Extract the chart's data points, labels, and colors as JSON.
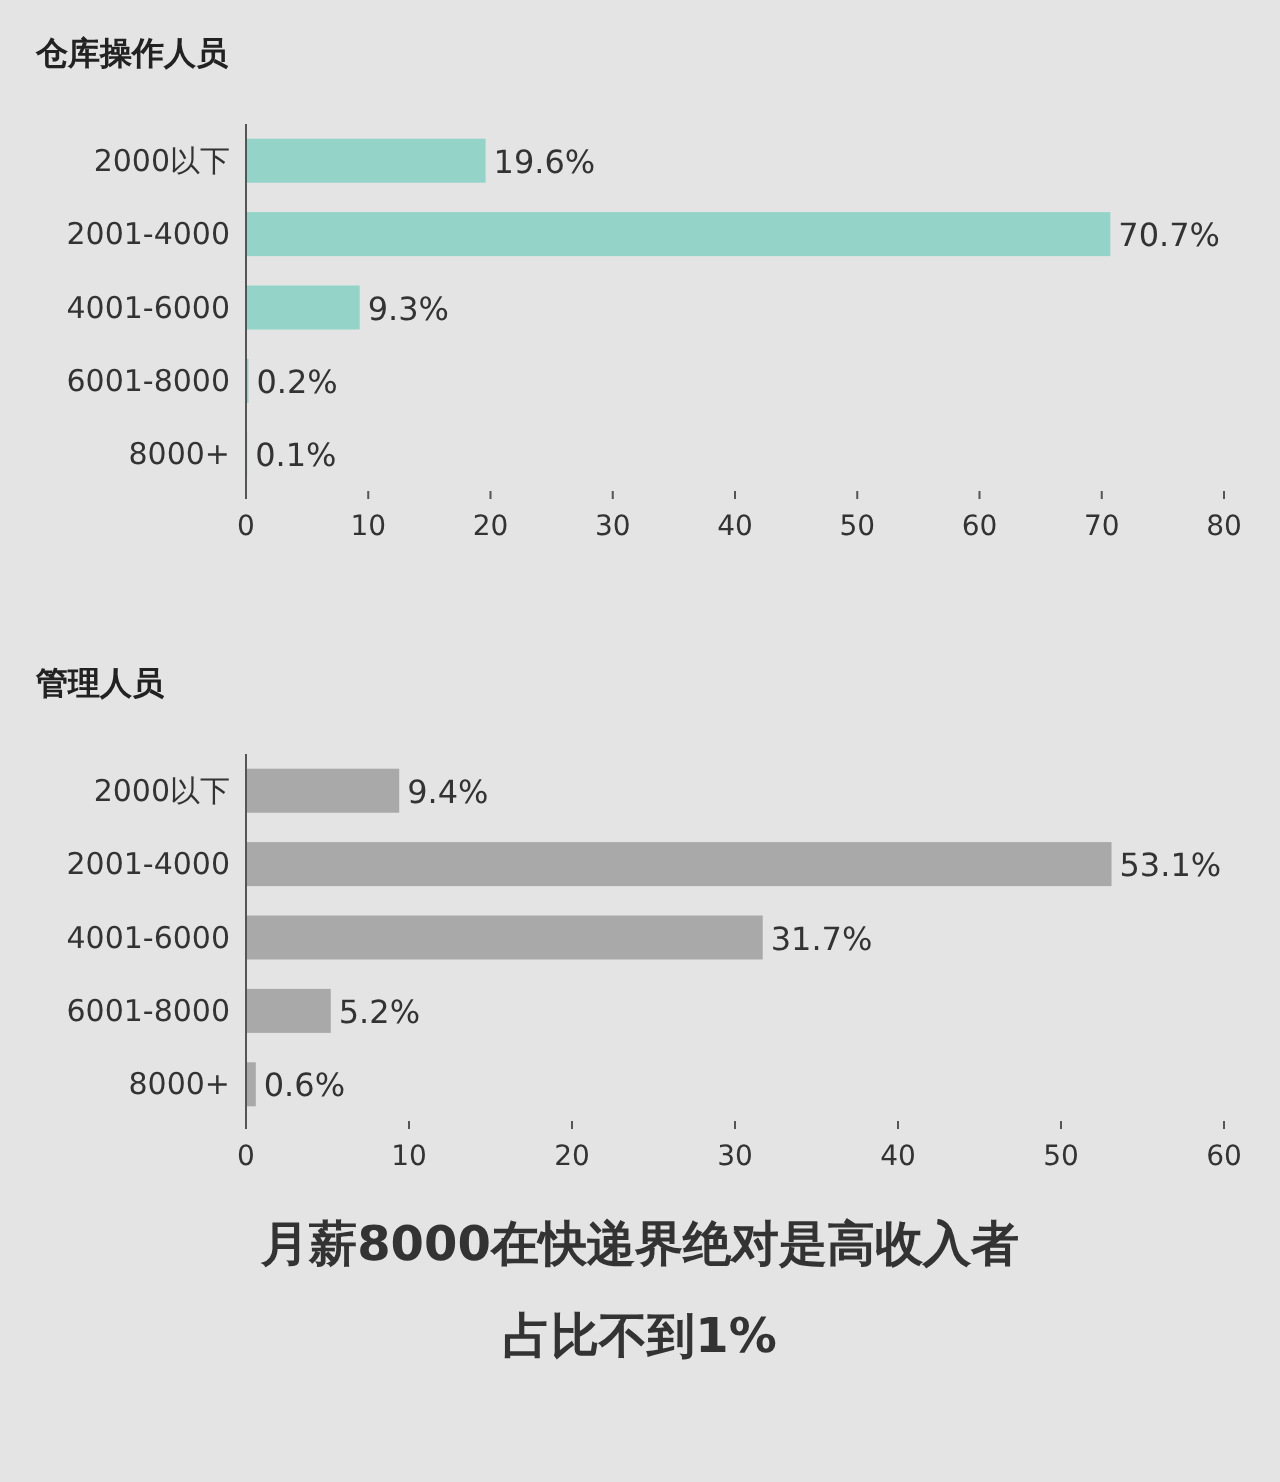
{
  "chart_data": [
    {
      "type": "bar",
      "orientation": "horizontal",
      "title": "仓库操作人员",
      "categories": [
        "2000以下",
        "2001-4000",
        "4001-6000",
        "6001-8000",
        "8000+"
      ],
      "values": [
        19.6,
        70.7,
        9.3,
        0.2,
        0.1
      ],
      "value_labels": [
        "19.6%",
        "70.7%",
        "9.3%",
        "0.2%",
        "0.1%"
      ],
      "color": "#93d3c8",
      "xlim": [
        0,
        80
      ],
      "xticks": [
        0,
        10,
        20,
        30,
        40,
        50,
        60,
        70,
        80
      ]
    },
    {
      "type": "bar",
      "orientation": "horizontal",
      "title": "管理人员",
      "categories": [
        "2000以下",
        "2001-4000",
        "4001-6000",
        "6001-8000",
        "8000+"
      ],
      "values": [
        9.4,
        53.1,
        31.7,
        5.2,
        0.6
      ],
      "value_labels": [
        "9.4%",
        "53.1%",
        "31.7%",
        "5.2%",
        "0.6%"
      ],
      "color": "#a9a9a9",
      "xlim": [
        0,
        60
      ],
      "xticks": [
        0,
        10,
        20,
        30,
        40,
        50,
        60
      ],
      "annotations": [
        "月薪8000在快递界绝对是高收入者",
        "占比不到1%"
      ]
    }
  ]
}
